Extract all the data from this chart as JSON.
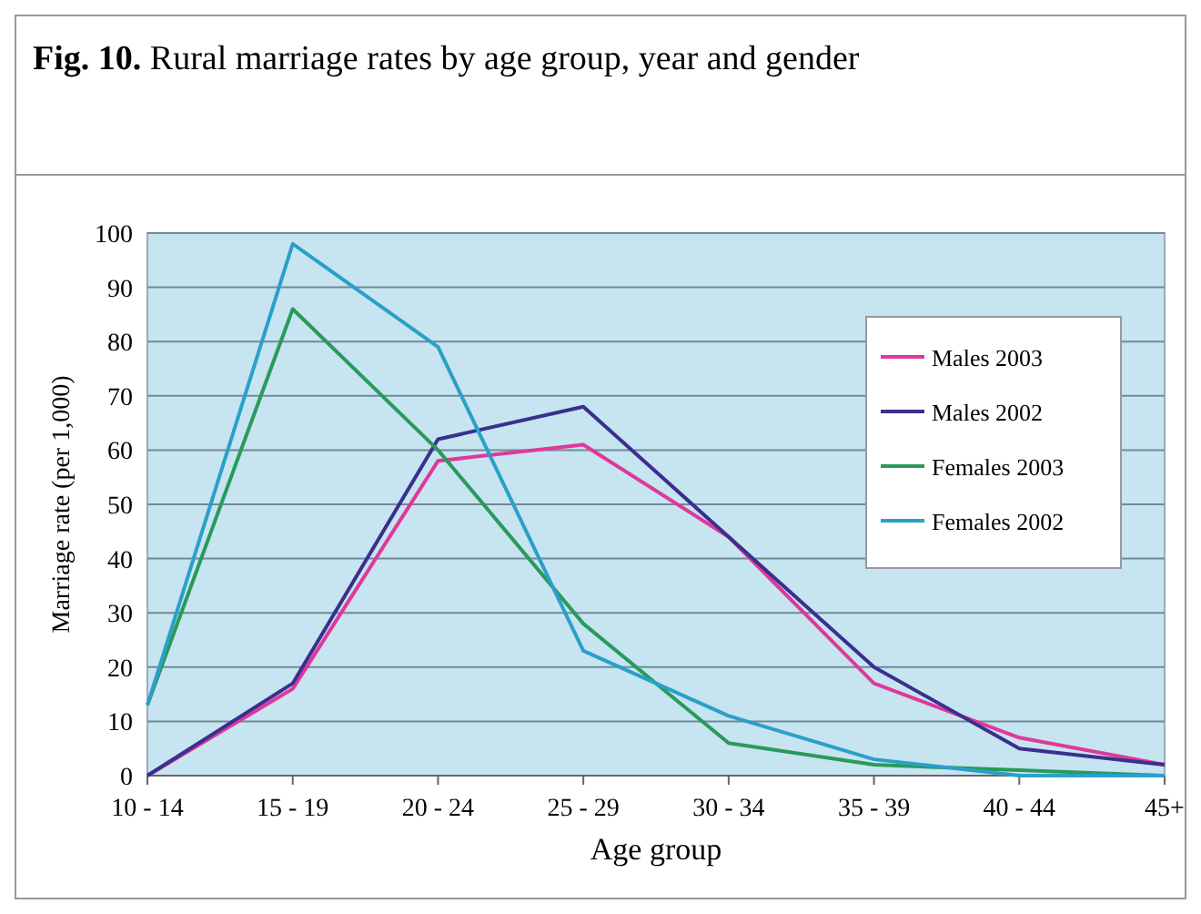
{
  "chart_data": {
    "type": "line",
    "title": "Fig. 10. Rural marriage rates by age group, year and gender",
    "xlabel": "Age group",
    "ylabel": "Marriage rate (per 1,000)",
    "categories": [
      "10 - 14",
      "15 - 19",
      "20 - 24",
      "25 - 29",
      "30 - 34",
      "35 - 39",
      "40 - 44",
      "45+"
    ],
    "series": [
      {
        "name": "Males 2003",
        "color": "#e0389a",
        "values": [
          0,
          16,
          58,
          61,
          44,
          17,
          7,
          2
        ]
      },
      {
        "name": "Males 2002",
        "color": "#3a2f8f",
        "values": [
          0,
          17,
          62,
          68,
          44,
          20,
          5,
          2
        ]
      },
      {
        "name": "Females 2003",
        "color": "#2a9a5a",
        "values": [
          13,
          86,
          60,
          28,
          6,
          2,
          1,
          0
        ]
      },
      {
        "name": "Females 2002",
        "color": "#2aa0c8",
        "values": [
          13,
          98,
          79,
          23,
          11,
          3,
          0,
          0
        ]
      }
    ],
    "ylim": [
      0,
      100
    ],
    "yticks": [
      0,
      10,
      20,
      30,
      40,
      50,
      60,
      70,
      80,
      90,
      100
    ],
    "grid": "y",
    "legend": "right",
    "marker": "none",
    "line_style": "solid"
  }
}
